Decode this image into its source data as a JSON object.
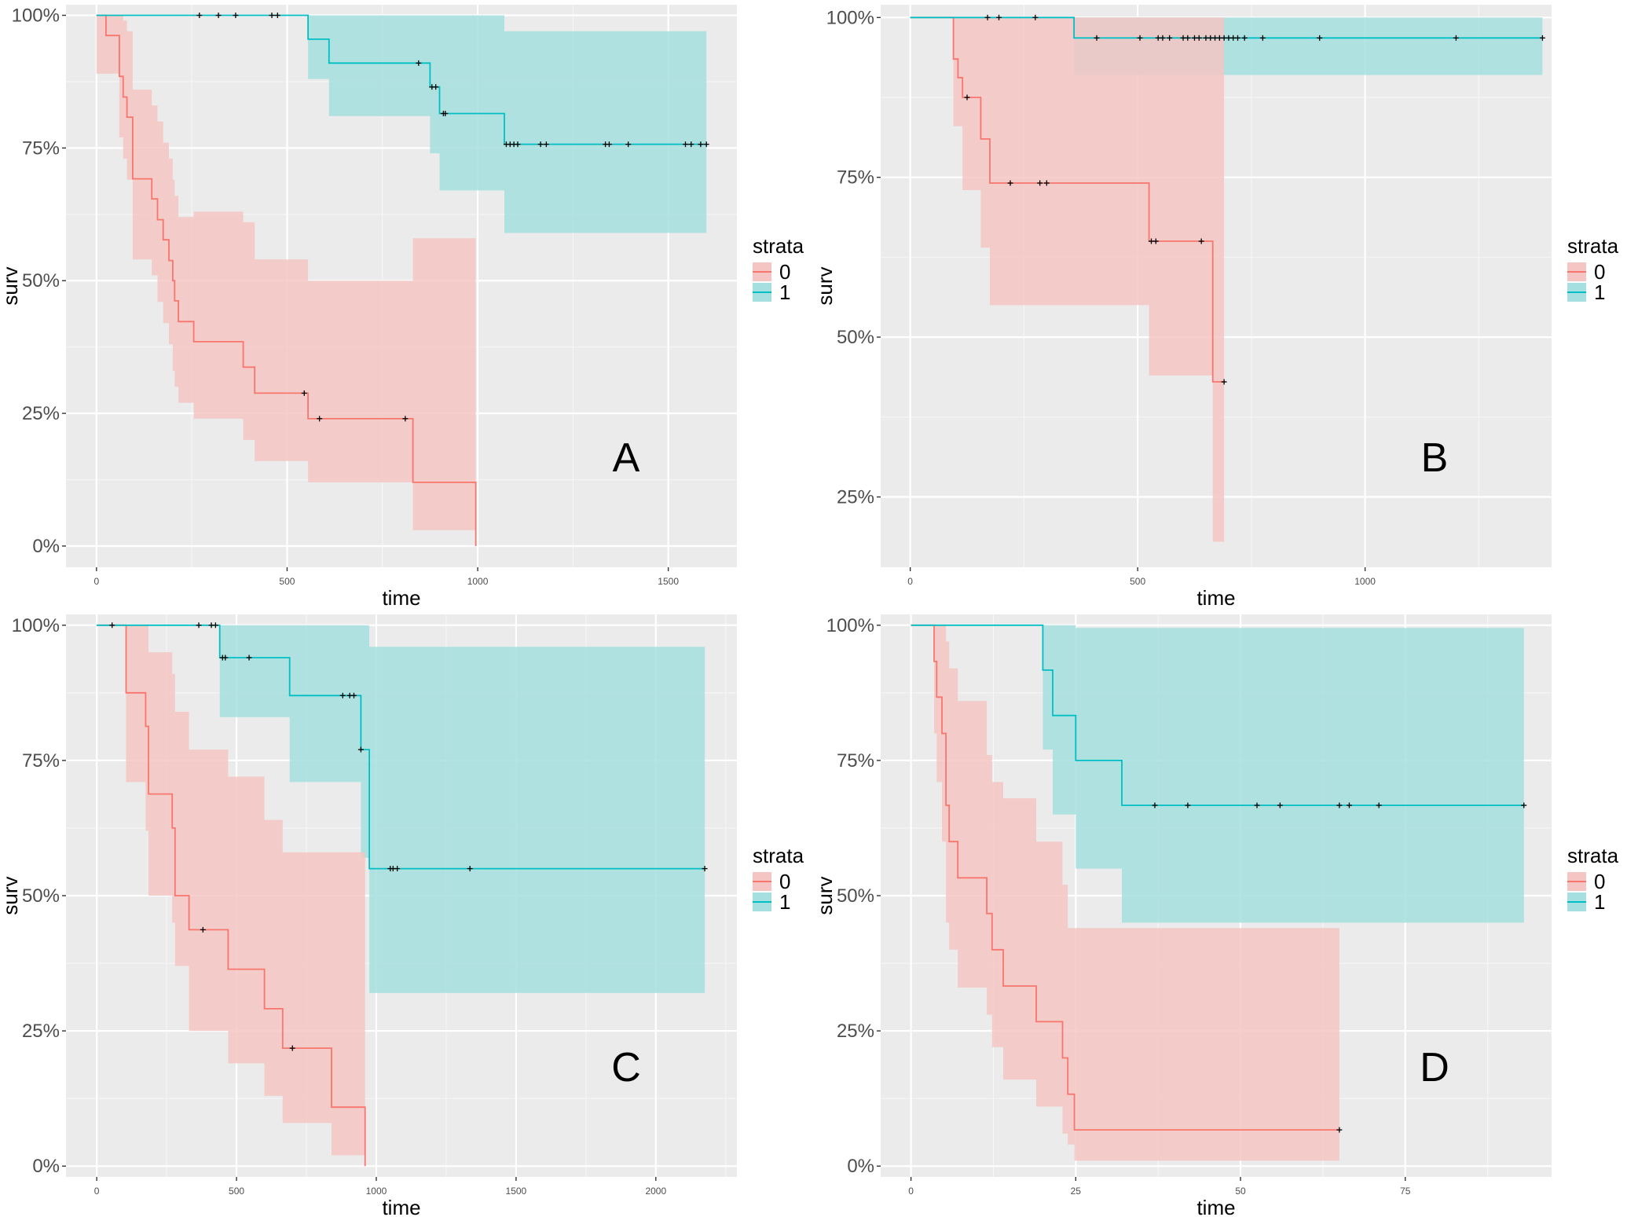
{
  "legend": {
    "title": "strata",
    "labels": [
      "0",
      "1"
    ]
  },
  "colors": {
    "strata0_line": "#F8766D",
    "strata0_band": "#F4C5C3",
    "strata1_line": "#00BFC4",
    "strata1_band": "#A6DFDF",
    "panel_bg": "#EBEBEB",
    "grid": "#FFFFFF"
  },
  "chart_data": [
    {
      "type": "line",
      "subtype": "kaplan-meier survival curve",
      "panel_label": "A",
      "xlabel": "time",
      "ylabel": "surv",
      "xlim": [
        -80,
        1680
      ],
      "ylim": [
        -0.04,
        1.02
      ],
      "xticks": [
        0,
        500,
        1000,
        1500
      ],
      "xtick_labels": [
        "0",
        "500",
        "1000",
        "1500"
      ],
      "yticks": [
        0,
        0.25,
        0.5,
        0.75,
        1
      ],
      "ytick_labels": [
        "0%",
        "25%",
        "50%",
        "75%",
        "100%"
      ],
      "grid": true,
      "legend_position": "right",
      "series": [
        {
          "name": "0",
          "steps": [
            [
              0,
              1
            ],
            [
              25,
              0.962
            ],
            [
              60,
              0.885
            ],
            [
              70,
              0.846
            ],
            [
              80,
              0.808
            ],
            [
              95,
              0.692
            ],
            [
              145,
              0.654
            ],
            [
              160,
              0.615
            ],
            [
              175,
              0.577
            ],
            [
              190,
              0.538
            ],
            [
              200,
              0.5
            ],
            [
              205,
              0.462
            ],
            [
              215,
              0.423
            ],
            [
              255,
              0.385
            ],
            [
              385,
              0.337
            ],
            [
              415,
              0.288
            ],
            [
              555,
              0.24
            ],
            [
              830,
              0.12
            ],
            [
              995,
              0
            ]
          ],
          "band": [
            [
              0,
              0.89,
              1
            ],
            [
              25,
              0.89,
              1
            ],
            [
              60,
              0.77,
              1
            ],
            [
              70,
              0.73,
              0.99
            ],
            [
              80,
              0.69,
              0.97
            ],
            [
              95,
              0.54,
              0.86
            ],
            [
              145,
              0.51,
              0.83
            ],
            [
              160,
              0.46,
              0.8
            ],
            [
              175,
              0.42,
              0.76
            ],
            [
              190,
              0.38,
              0.73
            ],
            [
              200,
              0.33,
              0.69
            ],
            [
              205,
              0.3,
              0.66
            ],
            [
              215,
              0.27,
              0.62
            ],
            [
              255,
              0.24,
              0.63
            ],
            [
              385,
              0.2,
              0.61
            ],
            [
              415,
              0.16,
              0.54
            ],
            [
              555,
              0.12,
              0.5
            ],
            [
              830,
              0.03,
              0.58
            ],
            [
              995,
              0,
              0
            ]
          ],
          "censor_times": [
            545,
            585,
            810
          ]
        },
        {
          "name": "1",
          "steps": [
            [
              0,
              1
            ],
            [
              555,
              0.955
            ],
            [
              610,
              0.91
            ],
            [
              875,
              0.865
            ],
            [
              900,
              0.815
            ],
            [
              1070,
              0.757
            ],
            [
              1600,
              0.757
            ]
          ],
          "band": [
            [
              0,
              1,
              1
            ],
            [
              555,
              0.88,
              1
            ],
            [
              610,
              0.81,
              1
            ],
            [
              875,
              0.74,
              1
            ],
            [
              900,
              0.67,
              1
            ],
            [
              1070,
              0.59,
              0.97
            ],
            [
              1600,
              0.59,
              0.97
            ]
          ],
          "censor_times": [
            270,
            320,
            365,
            460,
            475,
            845,
            880,
            890,
            910,
            915,
            1075,
            1085,
            1095,
            1105,
            1165,
            1180,
            1335,
            1345,
            1395,
            1545,
            1560,
            1585,
            1600
          ]
        }
      ]
    },
    {
      "type": "line",
      "subtype": "kaplan-meier survival curve",
      "panel_label": "B",
      "xlabel": "time",
      "ylabel": "surv",
      "xlim": [
        -65,
        1410
      ],
      "ylim": [
        0.14,
        1.02
      ],
      "xticks": [
        0,
        500,
        1000
      ],
      "xtick_labels": [
        "0",
        "500",
        "1000"
      ],
      "yticks": [
        0.25,
        0.5,
        0.75,
        1
      ],
      "ytick_labels": [
        "25%",
        "50%",
        "75%",
        "100%"
      ],
      "grid": true,
      "legend_position": "right",
      "series": [
        {
          "name": "0",
          "steps": [
            [
              0,
              1
            ],
            [
              95,
              0.935
            ],
            [
              105,
              0.906
            ],
            [
              115,
              0.875
            ],
            [
              155,
              0.81
            ],
            [
              175,
              0.741
            ],
            [
              525,
              0.65
            ],
            [
              665,
              0.43
            ],
            [
              690,
              0.43
            ]
          ],
          "band": [
            [
              0,
              1,
              1
            ],
            [
              95,
              0.83,
              1
            ],
            [
              105,
              0.83,
              1
            ],
            [
              115,
              0.73,
              1
            ],
            [
              155,
              0.64,
              1
            ],
            [
              175,
              0.55,
              1
            ],
            [
              525,
              0.44,
              1
            ],
            [
              665,
              0.18,
              1
            ],
            [
              690,
              0.18,
              1
            ]
          ],
          "censor_times": [
            125,
            220,
            285,
            300,
            530,
            540,
            640,
            690
          ]
        },
        {
          "name": "1",
          "steps": [
            [
              0,
              1
            ],
            [
              360,
              0.968
            ],
            [
              1390,
              0.968
            ]
          ],
          "band": [
            [
              0,
              1,
              1
            ],
            [
              360,
              0.91,
              1
            ],
            [
              1390,
              0.91,
              1
            ]
          ],
          "censor_times": [
            170,
            195,
            275,
            410,
            505,
            545,
            555,
            570,
            600,
            610,
            625,
            635,
            650,
            660,
            670,
            680,
            690,
            700,
            710,
            720,
            735,
            775,
            900,
            1200,
            1390
          ]
        }
      ]
    },
    {
      "type": "line",
      "subtype": "kaplan-meier survival curve",
      "panel_label": "C",
      "xlabel": "time",
      "ylabel": "surv",
      "xlim": [
        -110,
        2290
      ],
      "ylim": [
        -0.02,
        1.02
      ],
      "xticks": [
        0,
        500,
        1000,
        1500,
        2000
      ],
      "xtick_labels": [
        "0",
        "500",
        "1000",
        "1500",
        "2000"
      ],
      "yticks": [
        0,
        0.25,
        0.5,
        0.75,
        1
      ],
      "ytick_labels": [
        "0%",
        "25%",
        "50%",
        "75%",
        "100%"
      ],
      "grid": true,
      "legend_position": "right",
      "series": [
        {
          "name": "0",
          "steps": [
            [
              0,
              1
            ],
            [
              105,
              0.875
            ],
            [
              175,
              0.813
            ],
            [
              185,
              0.688
            ],
            [
              270,
              0.625
            ],
            [
              280,
              0.5
            ],
            [
              330,
              0.437
            ],
            [
              470,
              0.364
            ],
            [
              600,
              0.291
            ],
            [
              665,
              0.218
            ],
            [
              840,
              0.109
            ],
            [
              960,
              0
            ]
          ],
          "band": [
            [
              0,
              1,
              1
            ],
            [
              105,
              0.71,
              1
            ],
            [
              175,
              0.62,
              1
            ],
            [
              185,
              0.5,
              0.95
            ],
            [
              270,
              0.45,
              0.91
            ],
            [
              280,
              0.37,
              0.84
            ],
            [
              330,
              0.25,
              0.77
            ],
            [
              470,
              0.19,
              0.72
            ],
            [
              600,
              0.13,
              0.64
            ],
            [
              665,
              0.08,
              0.58
            ],
            [
              840,
              0.02,
              0.58
            ],
            [
              960,
              0,
              0
            ]
          ],
          "censor_times": [
            380,
            700
          ]
        },
        {
          "name": "1",
          "steps": [
            [
              0,
              1
            ],
            [
              440,
              0.94
            ],
            [
              690,
              0.87
            ],
            [
              945,
              0.77
            ],
            [
              975,
              0.55
            ],
            [
              2175,
              0.55
            ]
          ],
          "band": [
            [
              0,
              1,
              1
            ],
            [
              440,
              0.83,
              1
            ],
            [
              690,
              0.71,
              1
            ],
            [
              945,
              0.57,
              1
            ],
            [
              975,
              0.32,
              0.96
            ],
            [
              2175,
              0.32,
              0.96
            ]
          ],
          "censor_times": [
            55,
            365,
            410,
            425,
            450,
            460,
            545,
            880,
            905,
            920,
            945,
            1050,
            1060,
            1075,
            1335,
            2175
          ]
        }
      ]
    },
    {
      "type": "line",
      "subtype": "kaplan-meier survival curve",
      "panel_label": "D",
      "xlabel": "time",
      "ylabel": "surv",
      "xlim": [
        -4.6,
        97.2
      ],
      "ylim": [
        -0.02,
        1.02
      ],
      "xticks": [
        0,
        25,
        50,
        75
      ],
      "xtick_labels": [
        "0",
        "25",
        "50",
        "75"
      ],
      "yticks": [
        0,
        0.25,
        0.5,
        0.75,
        1
      ],
      "ytick_labels": [
        "0%",
        "25%",
        "50%",
        "75%",
        "100%"
      ],
      "grid": true,
      "legend_position": "right",
      "series": [
        {
          "name": "0",
          "steps": [
            [
              0,
              1
            ],
            [
              3.5,
              0.933
            ],
            [
              3.9,
              0.867
            ],
            [
              4.7,
              0.8
            ],
            [
              5.3,
              0.667
            ],
            [
              5.8,
              0.6
            ],
            [
              7.1,
              0.533
            ],
            [
              11.5,
              0.467
            ],
            [
              12.3,
              0.4
            ],
            [
              14,
              0.333
            ],
            [
              19,
              0.267
            ],
            [
              23,
              0.2
            ],
            [
              23.8,
              0.133
            ],
            [
              24.8,
              0.067
            ],
            [
              65,
              0.067
            ]
          ],
          "band": [
            [
              0,
              1,
              1
            ],
            [
              3.5,
              0.8,
              1
            ],
            [
              3.9,
              0.71,
              1
            ],
            [
              4.7,
              0.6,
              1
            ],
            [
              5.3,
              0.45,
              0.97
            ],
            [
              5.8,
              0.4,
              0.92
            ],
            [
              7.1,
              0.33,
              0.86
            ],
            [
              11.5,
              0.28,
              0.76
            ],
            [
              12.3,
              0.22,
              0.71
            ],
            [
              14,
              0.16,
              0.68
            ],
            [
              19,
              0.11,
              0.6
            ],
            [
              23,
              0.06,
              0.52
            ],
            [
              23.8,
              0.04,
              0.44
            ],
            [
              24.8,
              0.01,
              0.44
            ],
            [
              65,
              0.01,
              0.44
            ]
          ],
          "censor_times": [
            65
          ]
        },
        {
          "name": "1",
          "steps": [
            [
              0,
              1
            ],
            [
              20,
              0.917
            ],
            [
              21.5,
              0.833
            ],
            [
              25,
              0.75
            ],
            [
              32,
              0.667
            ],
            [
              93,
              0.667
            ]
          ],
          "band": [
            [
              0,
              1,
              1
            ],
            [
              20,
              0.77,
              1
            ],
            [
              21.5,
              0.65,
              1
            ],
            [
              25,
              0.55,
              0.995
            ],
            [
              32,
              0.45,
              0.995
            ],
            [
              93,
              0.45,
              0.995
            ]
          ],
          "censor_times": [
            37,
            42,
            52.5,
            56,
            65,
            66.5,
            71,
            93
          ]
        }
      ]
    }
  ]
}
